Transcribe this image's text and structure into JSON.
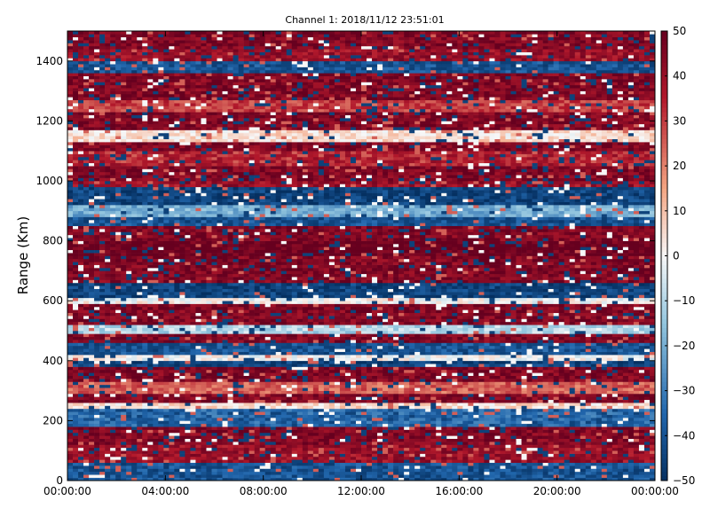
{
  "chart_data": {
    "type": "heatmap",
    "title": "Channel 1: 2018/11/12 23:51:01",
    "xlabel": "",
    "ylabel": "Range (Km)",
    "x_tick_labels": [
      "00:00:00",
      "04:00:00",
      "08:00:00",
      "12:00:00",
      "16:00:00",
      "20:00:00",
      "00:00:00"
    ],
    "y_ticks": [
      0,
      200,
      400,
      600,
      800,
      1000,
      1200,
      1400
    ],
    "ylim": [
      0,
      1500
    ],
    "x_range_hours": [
      0,
      24
    ],
    "colorbar": {
      "ticks": [
        50,
        40,
        30,
        20,
        10,
        0,
        -10,
        -20,
        -30,
        -40,
        -50
      ],
      "range": [
        -50,
        50
      ],
      "colormap": "RdBu_r",
      "colors": {
        "min": "#053061",
        "low": "#2166ac",
        "mid_low": "#92c5de",
        "mid": "#f7f7f7",
        "mid_high": "#f4a582",
        "high": "#b2182b",
        "max": "#67001f"
      }
    },
    "range_band_profile": [
      {
        "from": 0,
        "to": 60,
        "value": -40
      },
      {
        "from": 60,
        "to": 120,
        "value": 40
      },
      {
        "from": 120,
        "to": 180,
        "value": 45
      },
      {
        "from": 180,
        "to": 240,
        "value": -35
      },
      {
        "from": 240,
        "to": 260,
        "value": 5
      },
      {
        "from": 260,
        "to": 290,
        "value": 45
      },
      {
        "from": 290,
        "to": 330,
        "value": 25
      },
      {
        "from": 330,
        "to": 380,
        "value": 45
      },
      {
        "from": 380,
        "to": 400,
        "value": -45
      },
      {
        "from": 400,
        "to": 420,
        "value": 0
      },
      {
        "from": 420,
        "to": 460,
        "value": -40
      },
      {
        "from": 460,
        "to": 490,
        "value": 45
      },
      {
        "from": 490,
        "to": 520,
        "value": -10
      },
      {
        "from": 520,
        "to": 590,
        "value": 45
      },
      {
        "from": 590,
        "to": 610,
        "value": 0
      },
      {
        "from": 610,
        "to": 660,
        "value": -45
      },
      {
        "from": 660,
        "to": 700,
        "value": 45
      },
      {
        "from": 700,
        "to": 750,
        "value": 45
      },
      {
        "from": 750,
        "to": 800,
        "value": 50
      },
      {
        "from": 800,
        "to": 850,
        "value": 45
      },
      {
        "from": 850,
        "to": 880,
        "value": -40
      },
      {
        "from": 880,
        "to": 920,
        "value": -20
      },
      {
        "from": 920,
        "to": 980,
        "value": -45
      },
      {
        "from": 980,
        "to": 1000,
        "value": 40
      },
      {
        "from": 1000,
        "to": 1050,
        "value": 45
      },
      {
        "from": 1050,
        "to": 1100,
        "value": 35
      },
      {
        "from": 1100,
        "to": 1130,
        "value": 45
      },
      {
        "from": 1130,
        "to": 1170,
        "value": 5
      },
      {
        "from": 1170,
        "to": 1230,
        "value": 45
      },
      {
        "from": 1230,
        "to": 1270,
        "value": 30
      },
      {
        "from": 1270,
        "to": 1310,
        "value": 45
      },
      {
        "from": 1310,
        "to": 1360,
        "value": 45
      },
      {
        "from": 1360,
        "to": 1400,
        "value": -40
      },
      {
        "from": 1400,
        "to": 1440,
        "value": 40
      },
      {
        "from": 1440,
        "to": 1500,
        "value": 45
      }
    ]
  }
}
